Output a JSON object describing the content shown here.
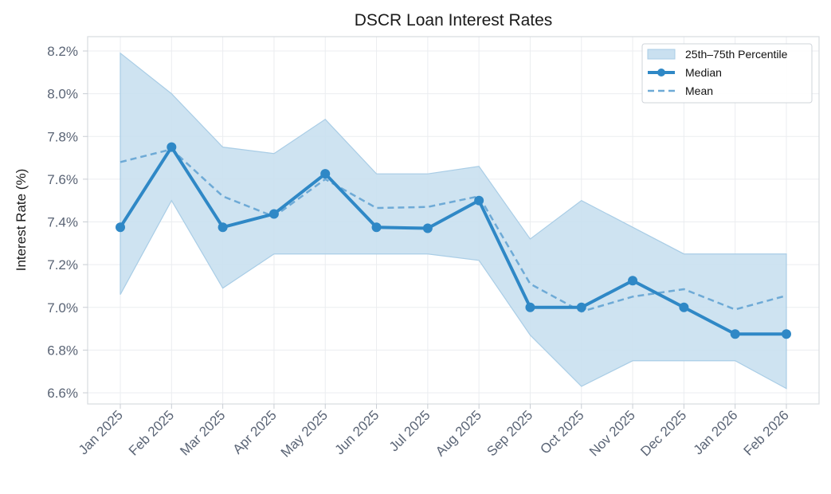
{
  "chart_data": {
    "type": "line",
    "title": "DSCR Loan Interest Rates",
    "xlabel": "",
    "ylabel": "Interest Rate (%)",
    "ylim": [
      6.55,
      8.25
    ],
    "yticks": [
      6.6,
      6.8,
      7.0,
      7.2,
      7.4,
      7.6,
      7.8,
      8.0,
      8.2
    ],
    "ytick_labels": [
      "6.6%",
      "6.8%",
      "7.0%",
      "7.2%",
      "7.4%",
      "7.6%",
      "7.8%",
      "8.0%",
      "8.2%"
    ],
    "grid": true,
    "legend_position": "top-right",
    "categories": [
      "Jan 2025",
      "Feb 2025",
      "Mar 2025",
      "Apr 2025",
      "May 2025",
      "Jun 2025",
      "Jul 2025",
      "Aug 2025",
      "Sep 2025",
      "Oct 2025",
      "Nov 2025",
      "Dec 2025",
      "Jan 2026",
      "Feb 2026"
    ],
    "band": {
      "name": "25th–75th Percentile",
      "lower": [
        7.06,
        7.5,
        7.09,
        7.25,
        7.25,
        7.25,
        7.25,
        7.22,
        6.87,
        6.63,
        6.75,
        6.75,
        6.75,
        6.62
      ],
      "upper": [
        8.19,
        8.0,
        7.75,
        7.72,
        7.88,
        7.625,
        7.625,
        7.66,
        7.32,
        7.5,
        7.375,
        7.25,
        7.25,
        7.25
      ]
    },
    "series": [
      {
        "name": "Median",
        "values": [
          7.375,
          7.75,
          7.375,
          7.4375,
          7.625,
          7.375,
          7.37,
          7.5,
          7.0,
          7.0,
          7.125,
          7.0,
          6.875,
          6.875
        ]
      },
      {
        "name": "Mean",
        "values": [
          7.68,
          7.74,
          7.52,
          7.425,
          7.6,
          7.465,
          7.47,
          7.52,
          7.11,
          6.98,
          7.05,
          7.085,
          6.99,
          7.055
        ]
      }
    ]
  },
  "colors": {
    "median": "#2f88c6",
    "mean": "#6eaad6",
    "band": "#c9e0f0",
    "band_edge": "#a9cde6",
    "text": "#5a6475"
  }
}
